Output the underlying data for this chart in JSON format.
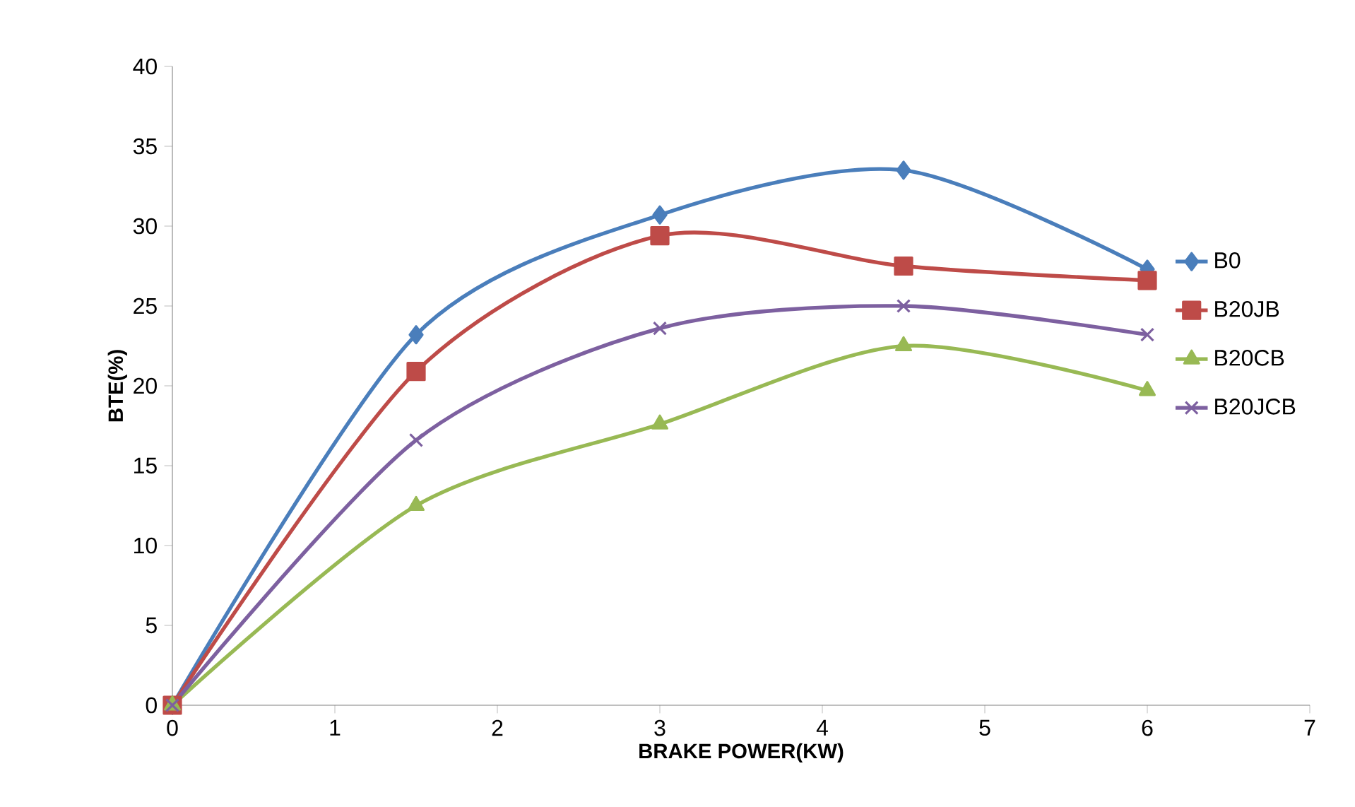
{
  "chart_data": {
    "type": "line",
    "xlabel": "**BRAKE POWER(KW)**",
    "ylabel": "**BTE(%)**",
    "x": [
      0,
      1.5,
      3,
      4.5,
      6
    ],
    "series": [
      {
        "name": "B0",
        "color": "#4a7ebb",
        "marker": "diamond",
        "values": [
          0,
          23.2,
          30.7,
          33.5,
          27.3
        ]
      },
      {
        "name": "B20JB",
        "color": "#be4b48",
        "marker": "square",
        "values": [
          0,
          20.9,
          29.4,
          27.5,
          26.6
        ]
      },
      {
        "name": "B20CB",
        "color": "#98b954",
        "marker": "triangle",
        "values": [
          0,
          12.5,
          17.6,
          22.5,
          19.7
        ]
      },
      {
        "name": "B20JCB",
        "color": "#7d60a0",
        "marker": "cross",
        "values": [
          0,
          16.6,
          23.6,
          25.0,
          23.2
        ]
      }
    ],
    "xlim": [
      0,
      7
    ],
    "xticks": [
      0,
      1,
      2,
      3,
      4,
      5,
      6,
      7
    ],
    "ylim": [
      0,
      40
    ],
    "yticks": [
      0,
      5,
      10,
      15,
      20,
      25,
      30,
      35,
      40
    ],
    "grid": false,
    "legend": "right"
  }
}
